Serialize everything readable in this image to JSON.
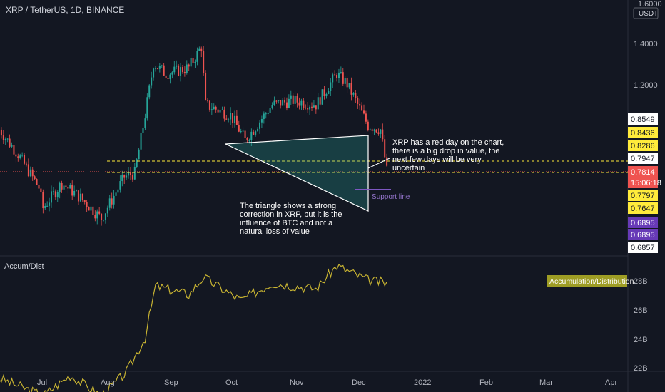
{
  "header": {
    "symbol_title": "XRP / TetherUS, 1D, BINANCE"
  },
  "price_axis": {
    "top_label": "1.6000",
    "currency": "USDT",
    "ticks": [
      "1.4000",
      "1.2000"
    ]
  },
  "price_tags": [
    {
      "text": "0.8549",
      "bg": "#ffffff",
      "fg": "#131722"
    },
    {
      "text": "0.8436",
      "bg": "#ffeb3b",
      "fg": "#131722"
    },
    {
      "text": "0.8286",
      "bg": "#ffeb3b",
      "fg": "#131722"
    },
    {
      "text": "0.7947",
      "bg": "#ffffff",
      "fg": "#131722"
    },
    {
      "text": "0.7814",
      "bg": "#ef5350",
      "fg": "#ffffff"
    },
    {
      "text": "15:06:18",
      "bg": "#ef5350",
      "fg": "#ffffff"
    },
    {
      "text": "0.7797",
      "bg": "#ffeb3b",
      "fg": "#131722"
    },
    {
      "text": "0.7647",
      "bg": "#ffeb3b",
      "fg": "#131722"
    },
    {
      "text": "0.6895",
      "bg": "#673ab7",
      "fg": "#ffffff"
    },
    {
      "text": "0.6895",
      "bg": "#673ab7",
      "fg": "#ffffff"
    },
    {
      "text": "0.6857",
      "bg": "#ffffff",
      "fg": "#131722"
    }
  ],
  "indicator": {
    "name": "Accum/Dist",
    "badge": "Accumulation/Distribution",
    "axis_ticks": [
      "28B",
      "26B",
      "24B",
      "22B"
    ]
  },
  "time_axis": {
    "labels": [
      "Jul",
      "Aug",
      "Sep",
      "Oct",
      "Nov",
      "Dec",
      "2022",
      "Feb",
      "Mar",
      "Apr"
    ]
  },
  "annotations": {
    "right_note": [
      "XRP has a red day on the chart,",
      "there is a big drop in value, the",
      "next few days will be very",
      "uncertain"
    ],
    "triangle_note": [
      "The triangle shows a strong",
      "correction in XRP, but it is the",
      "influence of BTC and not a",
      "natural loss of value"
    ],
    "support_label": "Support line"
  },
  "colors": {
    "up": "#26a69a",
    "down": "#ef5350",
    "accent_yellow": "#ffeb3b",
    "indicator_line": "#c8b432",
    "support": "#7e57c2"
  },
  "chart_data": [
    {
      "type": "candlestick",
      "title": "XRP / TetherUS, 1D, BINANCE",
      "x_range": [
        "2021-06-01",
        "2021-12-07"
      ],
      "ylim": [
        0.55,
        1.6
      ],
      "close_approx": [
        {
          "x": "2021-06-01",
          "y": 0.98
        },
        {
          "x": "2021-06-10",
          "y": 0.86
        },
        {
          "x": "2021-06-20",
          "y": 0.7
        },
        {
          "x": "2021-06-22",
          "y": 0.6
        },
        {
          "x": "2021-07-01",
          "y": 0.72
        },
        {
          "x": "2021-07-10",
          "y": 0.65
        },
        {
          "x": "2021-07-20",
          "y": 0.55
        },
        {
          "x": "2021-07-31",
          "y": 0.75
        },
        {
          "x": "2021-08-05",
          "y": 0.77
        },
        {
          "x": "2021-08-10",
          "y": 1.05
        },
        {
          "x": "2021-08-14",
          "y": 1.3
        },
        {
          "x": "2021-08-20",
          "y": 1.25
        },
        {
          "x": "2021-08-31",
          "y": 1.28
        },
        {
          "x": "2021-09-06",
          "y": 1.38
        },
        {
          "x": "2021-09-08",
          "y": 1.1
        },
        {
          "x": "2021-09-20",
          "y": 1.05
        },
        {
          "x": "2021-09-27",
          "y": 0.93
        },
        {
          "x": "2021-10-01",
          "y": 0.98
        },
        {
          "x": "2021-10-10",
          "y": 1.1
        },
        {
          "x": "2021-10-20",
          "y": 1.12
        },
        {
          "x": "2021-10-31",
          "y": 1.1
        },
        {
          "x": "2021-11-10",
          "y": 1.25
        },
        {
          "x": "2021-11-15",
          "y": 1.2
        },
        {
          "x": "2021-11-25",
          "y": 1.0
        },
        {
          "x": "2021-12-01",
          "y": 0.98
        },
        {
          "x": "2021-12-04",
          "y": 0.78
        }
      ],
      "horizontal_levels": [
        0.8436,
        0.7797
      ],
      "triangle": [
        {
          "x": "2021-09-27",
          "y": 0.93
        },
        {
          "x": "2021-12-05",
          "y": 0.98
        },
        {
          "x": "2021-12-05",
          "y": 0.67
        }
      ],
      "support_level": 0.6895
    },
    {
      "type": "line",
      "title": "Accum/Dist",
      "series": [
        {
          "name": "Accumulation/Distribution",
          "values": [
            {
              "x": "2021-06-01",
              "y": 24.6
            },
            {
              "x": "2021-06-15",
              "y": 24.2
            },
            {
              "x": "2021-06-22",
              "y": 24.0
            },
            {
              "x": "2021-07-05",
              "y": 24.7
            },
            {
              "x": "2021-07-20",
              "y": 24.0
            },
            {
              "x": "2021-08-01",
              "y": 24.8
            },
            {
              "x": "2021-08-10",
              "y": 26.0
            },
            {
              "x": "2021-08-15",
              "y": 27.8
            },
            {
              "x": "2021-08-31",
              "y": 27.5
            },
            {
              "x": "2021-09-07",
              "y": 28.1
            },
            {
              "x": "2021-09-25",
              "y": 27.3
            },
            {
              "x": "2021-10-10",
              "y": 27.9
            },
            {
              "x": "2021-10-31",
              "y": 27.7
            },
            {
              "x": "2021-11-10",
              "y": 28.5
            },
            {
              "x": "2021-11-25",
              "y": 28.0
            },
            {
              "x": "2021-12-04",
              "y": 27.9
            }
          ]
        }
      ],
      "ylim": [
        22,
        29
      ]
    }
  ]
}
